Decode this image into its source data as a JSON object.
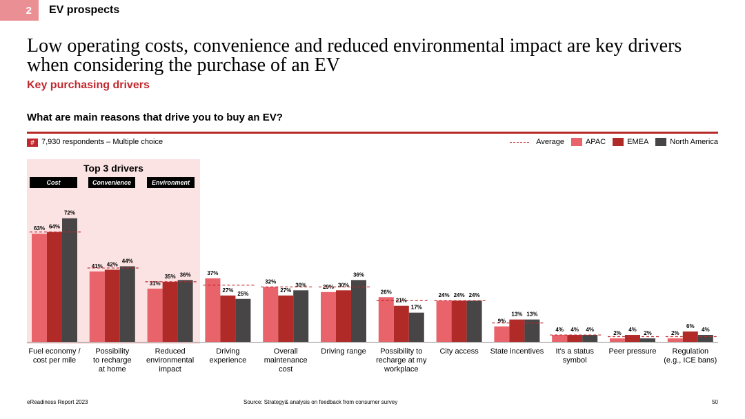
{
  "section": {
    "number": "2",
    "title": "EV prospects"
  },
  "headline": "Low operating costs, convenience and reduced environmental impact are key drivers when considering the purchase of an EV",
  "subheadline": "Key purchasing drivers",
  "question": "What are main reasons that drive you to buy an EV?",
  "respondents": {
    "symbol": "#",
    "text": "7,930 respondents – Multiple choice"
  },
  "top3": {
    "title": "Top 3 drivers",
    "tags": [
      "Cost",
      "Convenience",
      "Environment"
    ]
  },
  "colors": {
    "apac": "#e9636b",
    "emea": "#b02a27",
    "na": "#474546",
    "average": "#c0282e",
    "top3_bg": "#fbe2e3"
  },
  "chart_data": {
    "type": "bar",
    "title": "What are main reasons that drive you to buy an EV?",
    "ylim": [
      0,
      80
    ],
    "legend_position": "top-right",
    "legend": [
      "Average",
      "APAC",
      "EMEA",
      "North America"
    ],
    "categories": [
      [
        "Fuel economy /",
        "cost per mile"
      ],
      [
        "Possibility",
        "to recharge",
        "at home"
      ],
      [
        "Reduced",
        "environmental",
        "impact"
      ],
      [
        "Driving",
        "experience"
      ],
      [
        "Overall",
        "maintenance",
        "cost"
      ],
      [
        "Driving range"
      ],
      [
        "Possibility to",
        "recharge at my",
        "workplace"
      ],
      [
        "City access"
      ],
      [
        "State incentives"
      ],
      [
        "It's a status",
        "symbol"
      ],
      [
        "Peer pressure"
      ],
      [
        "Regulation",
        "(e.g., ICE bans)"
      ]
    ],
    "series": [
      {
        "name": "APAC",
        "values": [
          63,
          41,
          31,
          37,
          32,
          29,
          26,
          24,
          9,
          4,
          2,
          2
        ]
      },
      {
        "name": "EMEA",
        "values": [
          64,
          42,
          35,
          27,
          27,
          30,
          21,
          24,
          13,
          4,
          4,
          6
        ]
      },
      {
        "name": "North America",
        "values": [
          72,
          44,
          36,
          25,
          30,
          36,
          17,
          24,
          13,
          4,
          2,
          4
        ]
      }
    ],
    "average": [
      64,
      43,
      35,
      33,
      32,
      32,
      24,
      24,
      11,
      4,
      3,
      3
    ]
  },
  "footer": {
    "left": "eReadiness Report 2023",
    "source": "Source: Strategy& analysis on feedback from consumer survey",
    "page": "50"
  }
}
